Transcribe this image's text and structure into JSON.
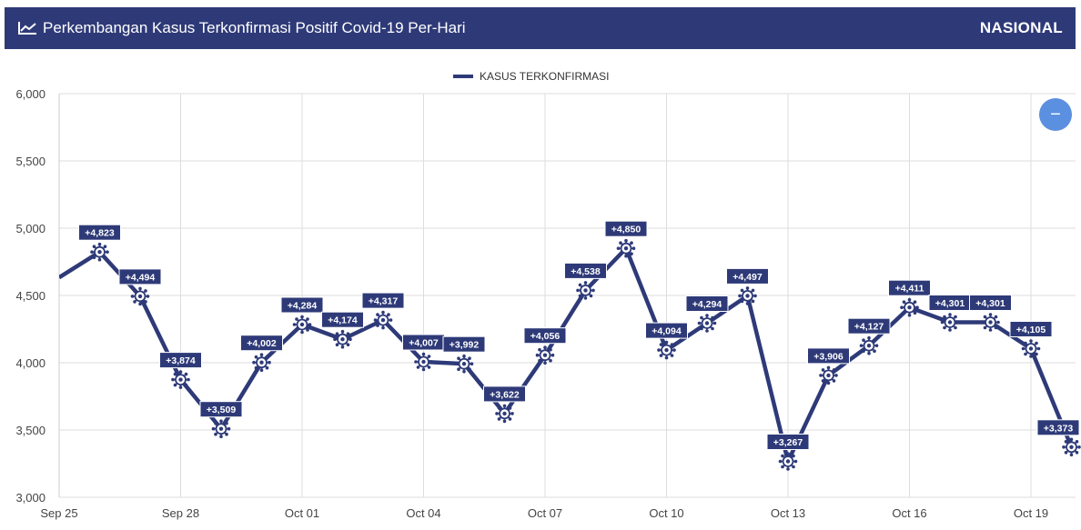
{
  "header": {
    "title": "Perkembangan Kasus Terkonfirmasi Positif Covid-19 Per-Hari",
    "scope": "NASIONAL",
    "icon": "line-chart-icon"
  },
  "zoom_button": {
    "label": "−",
    "icon": "minus-icon"
  },
  "colors": {
    "header_bg": "#2e3a78",
    "series": "#2e3a78",
    "zoom": "#5b8fe0",
    "grid": "#dddddd"
  },
  "chart_data": {
    "type": "line",
    "legend": {
      "position": "top-center",
      "entries": [
        "KASUS TERKONFIRMASI"
      ]
    },
    "grid": true,
    "ylim": [
      3000,
      6000
    ],
    "yticks": [
      3000,
      3500,
      4000,
      4500,
      5000,
      5500,
      6000
    ],
    "ytick_labels": [
      "3,000",
      "3,500",
      "4,000",
      "4,500",
      "5,000",
      "5,500",
      "6,000"
    ],
    "x_ticks": [
      {
        "date": "2020-09-25",
        "label": "Sep 25"
      },
      {
        "date": "2020-09-28",
        "label": "Sep 28"
      },
      {
        "date": "2020-10-01",
        "label": "Oct 01"
      },
      {
        "date": "2020-10-04",
        "label": "Oct 04"
      },
      {
        "date": "2020-10-07",
        "label": "Oct 07"
      },
      {
        "date": "2020-10-10",
        "label": "Oct 10"
      },
      {
        "date": "2020-10-13",
        "label": "Oct 13"
      },
      {
        "date": "2020-10-16",
        "label": "Oct 16"
      },
      {
        "date": "2020-10-19",
        "label": "Oct 19"
      }
    ],
    "series": [
      {
        "name": "KASUS TERKONFIRMASI",
        "color": "#2e3a78",
        "x": [
          "2020-09-26",
          "2020-09-27",
          "2020-09-28",
          "2020-09-29",
          "2020-09-30",
          "2020-10-01",
          "2020-10-02",
          "2020-10-03",
          "2020-10-04",
          "2020-10-05",
          "2020-10-06",
          "2020-10-07",
          "2020-10-08",
          "2020-10-09",
          "2020-10-10",
          "2020-10-11",
          "2020-10-12",
          "2020-10-13",
          "2020-10-14",
          "2020-10-15",
          "2020-10-16",
          "2020-10-17",
          "2020-10-18",
          "2020-10-19",
          "2020-10-20"
        ],
        "values": [
          4823,
          4494,
          3874,
          3509,
          4002,
          4284,
          4174,
          4317,
          4007,
          3992,
          3622,
          4056,
          4538,
          4850,
          4094,
          4294,
          4497,
          3267,
          3906,
          4127,
          4411,
          4301,
          4301,
          4105,
          3373
        ],
        "labels": [
          "+4,823",
          "+4,494",
          "+3,874",
          "+3,509",
          "+4,002",
          "+4,284",
          "+4,174",
          "+4,317",
          "+4,007",
          "+3,992",
          "+3,622",
          "+4,056",
          "+4,538",
          "+4,850",
          "+4,094",
          "+4,294",
          "+4,497",
          "+3,267",
          "+3,906",
          "+4,127",
          "+4,411",
          "+4,301",
          "+4,301",
          "+4,105",
          "+3,373"
        ]
      }
    ]
  }
}
